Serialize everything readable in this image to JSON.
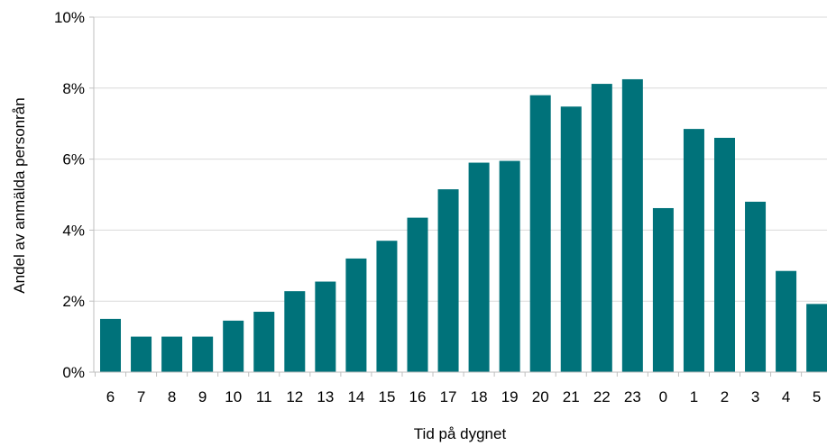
{
  "chart_data": {
    "type": "bar",
    "title": "",
    "xlabel": "Tid på dygnet",
    "ylabel": "Andel av anmälda personrån",
    "categories": [
      "6",
      "7",
      "8",
      "9",
      "10",
      "11",
      "12",
      "13",
      "14",
      "15",
      "16",
      "17",
      "18",
      "19",
      "20",
      "21",
      "22",
      "23",
      "0",
      "1",
      "2",
      "3",
      "4",
      "5"
    ],
    "values": [
      1.5,
      1.0,
      1.0,
      1.0,
      1.45,
      1.7,
      2.28,
      2.55,
      3.2,
      3.7,
      4.35,
      5.15,
      5.9,
      5.95,
      7.8,
      7.48,
      8.12,
      8.25,
      4.62,
      6.85,
      6.6,
      4.8,
      2.85,
      1.92
    ],
    "ylim": [
      0,
      10
    ],
    "yticks": [
      0,
      2,
      4,
      6,
      8,
      10
    ],
    "ytick_labels": [
      "0%",
      "2%",
      "4%",
      "6%",
      "8%",
      "10%"
    ],
    "grid": true,
    "bar_color": "#00727a"
  }
}
